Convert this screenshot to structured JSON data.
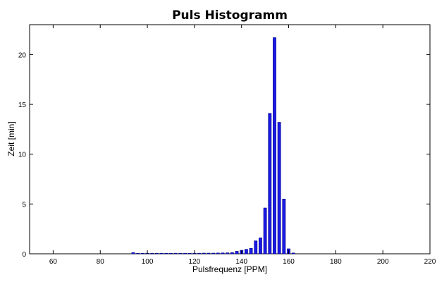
{
  "chart_data": {
    "type": "bar",
    "title": "Puls Histogramm",
    "xlabel": "Pulsfrequenz [PPM]",
    "ylabel": "Zeit [min]",
    "xlim": [
      50,
      220
    ],
    "ylim": [
      0,
      23
    ],
    "xticks": [
      60,
      80,
      100,
      120,
      140,
      160,
      180,
      200,
      220
    ],
    "yticks": [
      0,
      5,
      10,
      15,
      20
    ],
    "grid": false,
    "bar_color": "#1a1ae6",
    "bar_edge_color": "#000080",
    "x": [
      94,
      96,
      98,
      100,
      102,
      104,
      106,
      108,
      110,
      112,
      114,
      116,
      118,
      120,
      122,
      124,
      126,
      128,
      130,
      132,
      134,
      136,
      138,
      140,
      142,
      144,
      146,
      148,
      150,
      152,
      154,
      156,
      158,
      160,
      162
    ],
    "values": [
      0.12,
      0.05,
      0.05,
      0.06,
      0.05,
      0.05,
      0.06,
      0.05,
      0.05,
      0.06,
      0.05,
      0.06,
      0.05,
      0.06,
      0.06,
      0.07,
      0.07,
      0.07,
      0.08,
      0.09,
      0.1,
      0.12,
      0.25,
      0.35,
      0.45,
      0.55,
      1.3,
      1.6,
      4.6,
      14.1,
      21.7,
      13.2,
      5.5,
      0.5,
      0.08
    ]
  }
}
